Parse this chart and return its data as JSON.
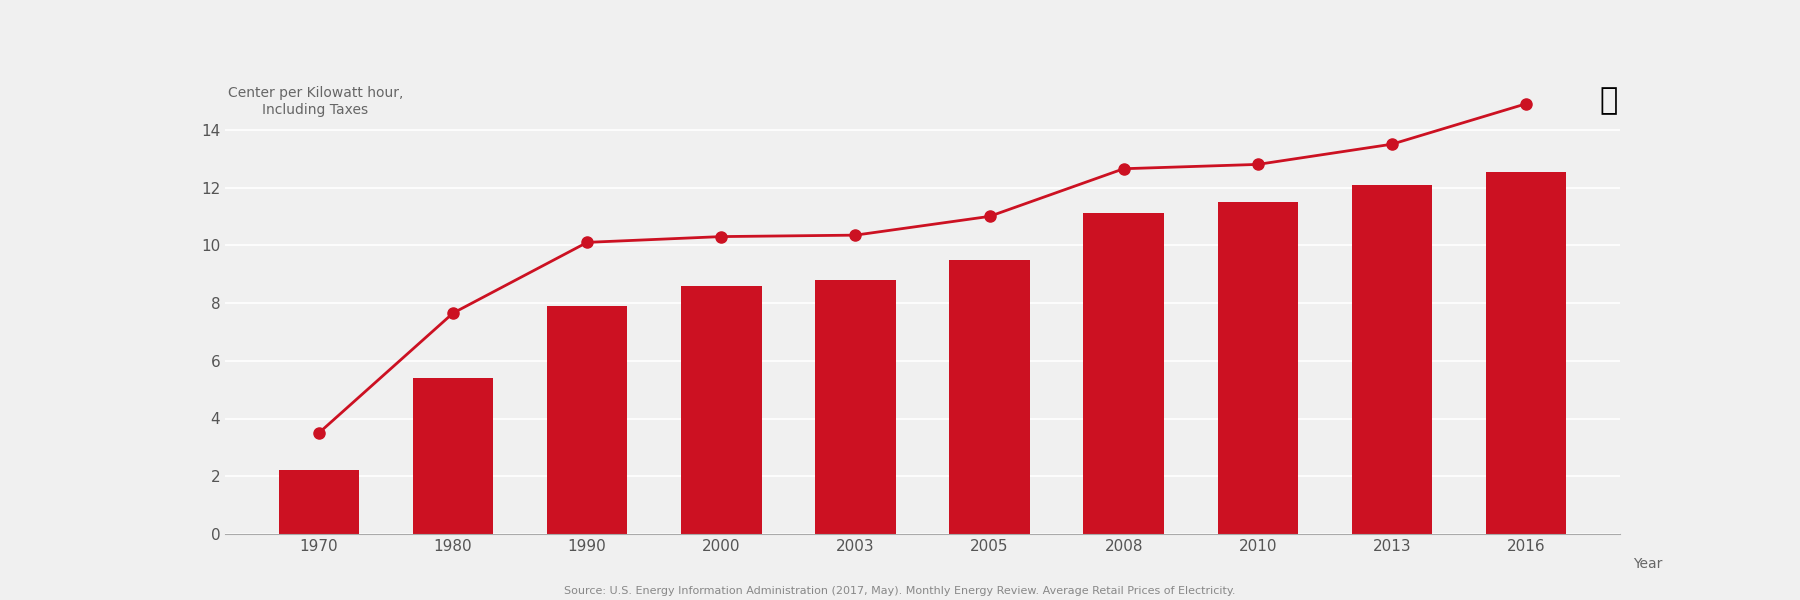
{
  "years": [
    1970,
    1980,
    1990,
    2000,
    2003,
    2005,
    2008,
    2010,
    2013,
    2016
  ],
  "bar_values": [
    2.2,
    5.4,
    7.9,
    8.6,
    8.8,
    9.5,
    11.1,
    11.5,
    12.1,
    12.55
  ],
  "line_values": [
    3.5,
    7.65,
    10.1,
    10.3,
    10.35,
    11.0,
    12.65,
    12.8,
    13.5,
    14.9
  ],
  "bar_color": "#cc1122",
  "line_color": "#cc1122",
  "marker_color": "#cc1122",
  "background_color": "#f0f0f0",
  "ylabel": "Center per Kilowatt hour,\nIncluding Taxes",
  "xlabel": "Year",
  "ylim": [
    0,
    16
  ],
  "yticks": [
    0,
    2,
    4,
    6,
    8,
    10,
    12,
    14
  ],
  "source_text": "Source: U.S. Energy Information Administration (2017, May). Monthly Energy Review. Average Retail Prices of Electricity.",
  "bar_width": 0.6
}
